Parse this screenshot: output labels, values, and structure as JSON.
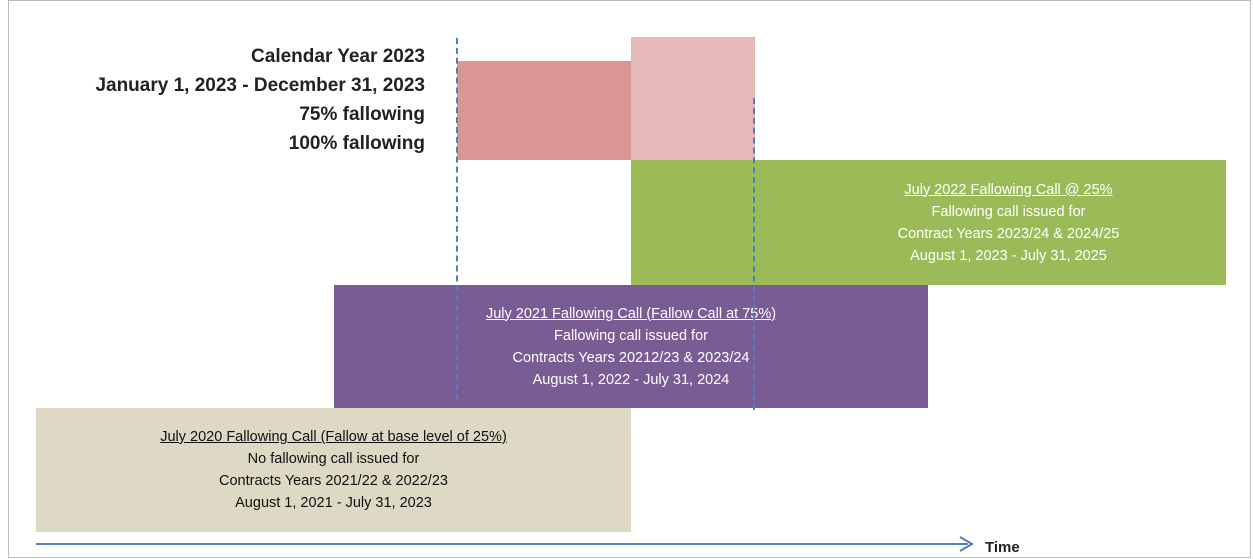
{
  "legend": {
    "line1": "Calendar Year 2023",
    "line2": "January 1, 2023 - December 31, 2023",
    "line3": "75% fallowing",
    "line4": "100% fallowing"
  },
  "calls": [
    {
      "title": "July 2022 Fallowing Call @ 25%",
      "line1": "Fallowing call issued for",
      "line2": "Contract Years 2023/24 & 2024/25",
      "line3": "August 1, 2023 - July 31, 2025"
    },
    {
      "title": "July 2021 Fallowing Call (Fallow Call at 75%)",
      "line1": "Fallowing call issued for",
      "line2": "Contracts Years 20212/23 & 2023/24",
      "line3": "August 1, 2022 - July 31, 2024"
    },
    {
      "title": "July 2020 Fallowing Call (Fallow at base level of 25%)",
      "line1": "No fallowing call issued for",
      "line2": "Contracts Years 2021/22 & 2022/23",
      "line3": "August 1, 2021 - July 31, 2023"
    }
  ],
  "axis": {
    "label": "Time"
  },
  "colors": {
    "fallowing_75": "#d99694",
    "fallowing_100": "#e6b9b8",
    "call_2022": "#9bbb59",
    "call_2021": "#7a5c95",
    "call_2020": "#ddd9c4",
    "markers": "#4f81bd"
  }
}
